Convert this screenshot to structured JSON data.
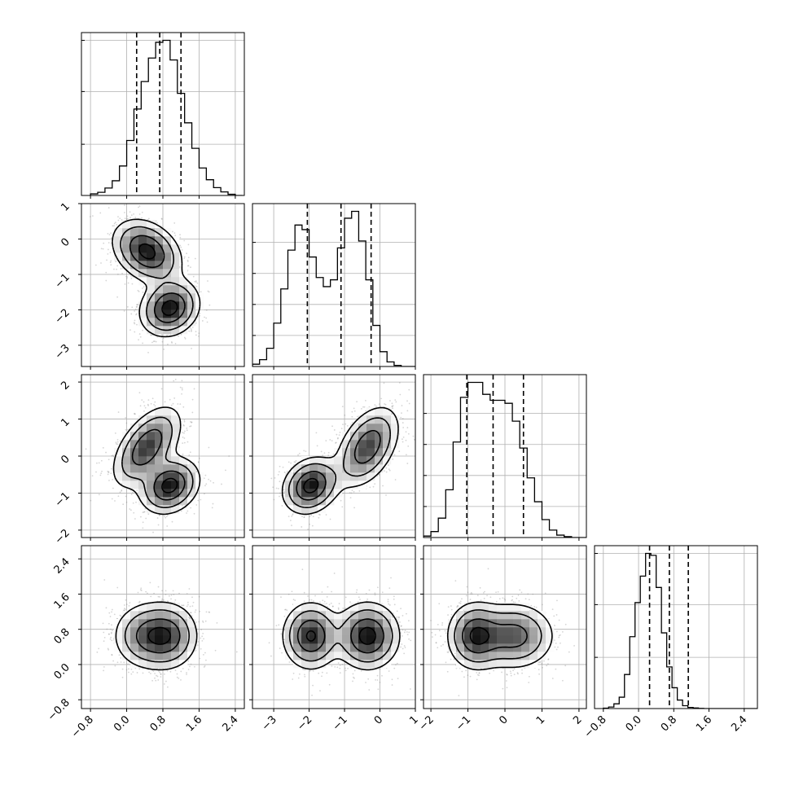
{
  "chart_data": {
    "type": "corner",
    "n_params": 4,
    "params": [
      {
        "name": "",
        "range": [
          -1.0,
          2.6
        ],
        "ticks": [
          -0.8,
          0.0,
          0.8,
          1.6,
          2.4
        ],
        "tick_labels": [
          "−0.8",
          "0.0",
          "0.8",
          "1.6",
          "2.4"
        ],
        "quantiles": [
          0.22,
          0.73,
          1.2
        ],
        "hist": {
          "edges_start": -0.8,
          "bin_width": 0.16,
          "counts": [
            8,
            16,
            38,
            75,
            150,
            280,
            440,
            580,
            700,
            780,
            790,
            690,
            520,
            370,
            240,
            140,
            80,
            40,
            18,
            6,
            0
          ]
        },
        "hist_ticks": [
          0.33,
          0.67,
          1.0
        ]
      },
      {
        "name": "",
        "range": [
          -3.6,
          1.0
        ],
        "ticks": [
          -3,
          -2,
          -1,
          0,
          1
        ],
        "tick_labels": [
          "−3",
          "−2",
          "−1",
          "0",
          "1"
        ],
        "quantiles": [
          -2.05,
          -1.1,
          -0.25
        ],
        "hist": {
          "edges_start": -3.6,
          "bin_width": 0.2,
          "counts": [
            10,
            30,
            80,
            190,
            340,
            510,
            620,
            600,
            480,
            390,
            350,
            380,
            520,
            650,
            680,
            550,
            380,
            180,
            65,
            20,
            5,
            0,
            0
          ]
        },
        "hist_ticks": [
          0.2,
          0.4,
          0.6,
          0.8
        ]
      },
      {
        "name": "",
        "range": [
          -2.2,
          2.2
        ],
        "ticks": [
          -2,
          -1,
          0,
          1,
          2
        ],
        "tick_labels": [
          "−2",
          "−1",
          "0",
          "1",
          "2"
        ],
        "quantiles": [
          -1.03,
          -0.32,
          0.5
        ],
        "hist": {
          "edges_start": -2.2,
          "bin_width": 0.2,
          "counts": [
            5,
            20,
            65,
            160,
            320,
            470,
            520,
            520,
            480,
            460,
            460,
            450,
            390,
            300,
            200,
            120,
            60,
            25,
            8,
            3,
            0,
            0
          ]
        },
        "hist_ticks": [
          0.2,
          0.4,
          0.6,
          0.8
        ]
      },
      {
        "name": "",
        "range": [
          -1.0,
          2.7
        ],
        "ticks": [
          -0.8,
          0.0,
          0.8,
          1.6,
          2.4
        ],
        "tick_labels": [
          "−0.8",
          "0.0",
          "0.8",
          "1.6",
          "2.4"
        ],
        "quantiles": [
          0.25,
          0.7,
          1.13
        ],
        "hist": {
          "edges_start": -0.8,
          "bin_width": 0.12,
          "counts": [
            2,
            8,
            25,
            60,
            180,
            380,
            560,
            700,
            820,
            810,
            640,
            400,
            220,
            110,
            45,
            15,
            6,
            3,
            1,
            0,
            0,
            0,
            0,
            0,
            0,
            0,
            0,
            0,
            0,
            0
          ]
        },
        "hist_ticks": [
          0.33,
          0.67,
          1.0
        ]
      }
    ],
    "modes": [
      {
        "weight": 0.55,
        "mean": [
          0.45,
          -0.35,
          0.25,
          0.65
        ],
        "sd": [
          0.38,
          0.45,
          0.55,
          0.38
        ],
        "corr": [
          [
            1,
            -0.3,
            0.55,
            0
          ],
          [
            -0.3,
            1,
            0.45,
            0
          ],
          [
            0.55,
            0.45,
            1,
            0
          ],
          [
            0,
            0,
            0,
            1
          ]
        ]
      },
      {
        "weight": 0.45,
        "mean": [
          0.95,
          -1.95,
          -0.8,
          0.65
        ],
        "sd": [
          0.33,
          0.4,
          0.38,
          0.38
        ],
        "corr": [
          [
            1,
            0.15,
            0.2,
            0
          ],
          [
            0.15,
            1,
            0.2,
            0
          ],
          [
            0.2,
            0.2,
            1,
            0
          ],
          [
            0,
            0,
            0,
            1
          ]
        ]
      }
    ],
    "contour_levels": [
      0.5,
      1.0,
      1.5,
      2.0
    ],
    "grid": true
  }
}
